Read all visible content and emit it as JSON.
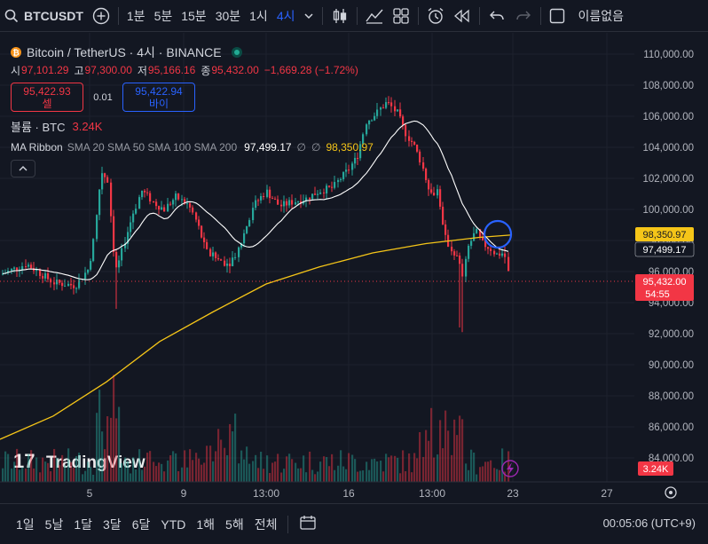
{
  "toolbar": {
    "symbol": "BTCUSDT",
    "intervals": [
      "1분",
      "5분",
      "15분",
      "30분",
      "1시",
      "4시"
    ],
    "active_interval": "4시",
    "unnamed_label": "이름없음"
  },
  "legend": {
    "title": "Bitcoin / TetherUS · 4시 · BINANCE",
    "ohlc": [
      {
        "label": "시",
        "value": "97,101.29"
      },
      {
        "label": "고",
        "value": "97,300.00"
      },
      {
        "label": "저",
        "value": "95,166.16"
      },
      {
        "label": "종",
        "value": "95,432.00"
      }
    ],
    "change": "−1,669.28 (−1.72%)",
    "sell_price": "95,422.93",
    "sell_label": "셀",
    "spread": "0.01",
    "buy_price": "95,422.94",
    "buy_label": "바이",
    "volume_label": "볼륨 · BTC",
    "volume_value": "3.24K",
    "ma_label": "MA Ribbon",
    "ma_params": "SMA 20 SMA 50 SMA 100 SMA 200",
    "ma_value1": "97,499.17",
    "ma_empty1": "∅",
    "ma_empty2": "∅",
    "ma_value2": "98,350.97"
  },
  "axis": {
    "y_labels": [
      "110,000.00",
      "108,000.00",
      "106,000.00",
      "104,000.00",
      "102,000.00",
      "100,000.00",
      "98,000.00",
      "96,000.00",
      "94,000.00",
      "92,000.00",
      "90,000.00",
      "88,000.00",
      "86,000.00",
      "84,000.00"
    ],
    "x_labels": [
      "5",
      "9",
      "13:00",
      "16",
      "13:00",
      "23",
      "27"
    ],
    "tag_ma200": "98,350.97",
    "tag_ma20": "97,499.17",
    "tag_last": "95,432.00",
    "tag_countdown": "54:55",
    "tag_volume": "3.24K"
  },
  "colors": {
    "up": "#26a69a",
    "down": "#f23645",
    "ma20": "#ffffff",
    "ma200": "#f5c518",
    "background": "#131722"
  },
  "watermark": "TradingView",
  "bottom": {
    "ranges": [
      "1일",
      "5날",
      "1달",
      "3달",
      "6달",
      "YTD",
      "1해",
      "5해",
      "전체"
    ],
    "clock": "00:05:06 (UTC+9)"
  },
  "chart_data": {
    "type": "candlestick",
    "title": "Bitcoin / TetherUS · 4시 · BINANCE",
    "ylim": [
      83500,
      111000
    ],
    "x_ticks": [
      "5",
      "9",
      "13:00",
      "16",
      "13:00",
      "23",
      "27"
    ],
    "series": [
      {
        "name": "SMA 20",
        "last": 97499.17
      },
      {
        "name": "SMA 200",
        "last": 98350.97
      }
    ],
    "last_close": 95432.0
  }
}
